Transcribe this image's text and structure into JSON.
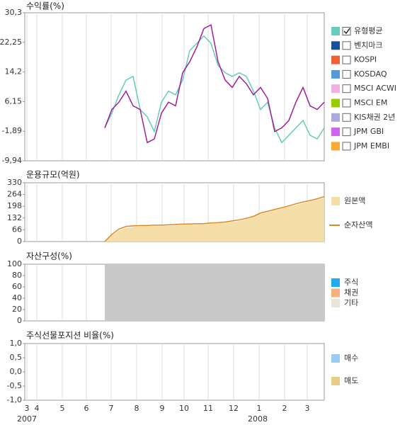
{
  "x_axis": {
    "ticks": [
      "3",
      "4",
      "5",
      "6",
      "7",
      "8",
      "9",
      "10",
      "11",
      "12",
      "1",
      "2",
      "3"
    ],
    "years": [
      "2007",
      "2008"
    ]
  },
  "chart_data": [
    {
      "type": "line",
      "title": "수익률(%)",
      "ylim": [
        -9.94,
        30.3
      ],
      "yticks": [
        {
          "value": 30.3,
          "label": "30,3"
        },
        {
          "value": 22.25,
          "label": "22,25"
        },
        {
          "value": 14.2,
          "label": "14,2"
        },
        {
          "value": 6.15,
          "label": "6,15"
        },
        {
          "value": -1.89,
          "label": "-1,89"
        },
        {
          "value": -9.94,
          "label": "-9,94"
        }
      ],
      "series": [
        {
          "color": "#a0209a",
          "values": [
            -1,
            4,
            6,
            9,
            5,
            4,
            -5,
            -4,
            3,
            6,
            5,
            14,
            17,
            21,
            26,
            27,
            17,
            12,
            10,
            13,
            11,
            8,
            10,
            7,
            -2,
            -1,
            1,
            6,
            10,
            5,
            4,
            6
          ]
        },
        {
          "name": "유형평균",
          "color": "#66ccbb",
          "checked": true,
          "values": [
            -1,
            3,
            8,
            12,
            13,
            4,
            2,
            -2,
            6,
            9,
            8,
            12,
            20,
            22,
            24,
            22,
            16,
            14,
            13,
            14,
            13,
            9,
            4,
            6,
            -1,
            -5,
            -3,
            -1,
            1,
            -3,
            -4,
            -1
          ]
        },
        {
          "name": "벤치마크",
          "color": "#1a4f9c",
          "checked": false,
          "values": []
        },
        {
          "name": "KOSPI",
          "color": "#f06030",
          "checked": false,
          "values": []
        },
        {
          "name": "KOSDAQ",
          "color": "#5599dd",
          "checked": false,
          "values": []
        },
        {
          "name": "MSCI ACWI",
          "color": "#f0b0e0",
          "checked": false,
          "values": []
        },
        {
          "name": "MSCI EM",
          "color": "#99cc00",
          "checked": false,
          "values": []
        },
        {
          "name": "KIS채권 2년",
          "color": "#aaaadd",
          "checked": false,
          "values": []
        },
        {
          "name": "JPM GBI",
          "color": "#cc66ee",
          "checked": false,
          "values": []
        },
        {
          "name": "JPM EMBI",
          "color": "#f8aa33",
          "checked": false,
          "values": []
        }
      ]
    },
    {
      "type": "area",
      "title": "운용규모(억원)",
      "ylim": [
        0,
        330
      ],
      "yticks": [
        0,
        66,
        132,
        198,
        264,
        330
      ],
      "series": [
        {
          "name": "원본액",
          "color": "#f5dfa8",
          "style": "area",
          "values": [
            0,
            35,
            62,
            78,
            82,
            84,
            85,
            86,
            87,
            88,
            90,
            92,
            94,
            96,
            98,
            100,
            102,
            106,
            110,
            116,
            124,
            140,
            155,
            165,
            175,
            185,
            195,
            205,
            215,
            225,
            235,
            245
          ]
        },
        {
          "name": "순자산액",
          "color": "#dd8822",
          "style": "line",
          "values": [
            0,
            40,
            70,
            85,
            88,
            90,
            90,
            92,
            92,
            94,
            96,
            98,
            99,
            100,
            101,
            104,
            106,
            110,
            116,
            122,
            130,
            142,
            160,
            170,
            180,
            190,
            200,
            212,
            222,
            230,
            240,
            252
          ]
        }
      ]
    },
    {
      "type": "area",
      "title": "자산구성(%)",
      "ylim": [
        0,
        100
      ],
      "yticks": [
        0,
        20,
        40,
        60,
        80,
        100
      ],
      "series": [
        {
          "name": "주식",
          "color": "#22aaee",
          "style": "area",
          "values": []
        },
        {
          "name": "채권",
          "color": "#f5b080",
          "style": "area",
          "values": []
        },
        {
          "name": "기타",
          "color": "#e8e4d8",
          "fill": "#c8c8c8",
          "style": "area",
          "values": [
            100,
            100,
            100,
            100,
            100,
            100,
            100,
            100,
            100,
            100,
            100,
            100,
            100,
            100,
            100,
            100,
            100,
            100,
            100,
            100,
            100,
            100,
            100,
            100,
            100,
            100,
            100,
            100,
            100,
            100,
            100,
            100
          ]
        }
      ]
    },
    {
      "type": "bar",
      "title": "주식선물포지션 비율(%)",
      "ylim": [
        -1,
        1
      ],
      "yticks": [
        {
          "value": 1,
          "label": "1,0"
        },
        {
          "value": 0.5,
          "label": "0,5"
        },
        {
          "value": 0,
          "label": "0,0"
        },
        {
          "value": -0.5,
          "label": "-0,5"
        },
        {
          "value": -1,
          "label": "-1,0"
        }
      ],
      "series": [
        {
          "name": "매수",
          "color": "#99ccee",
          "values": []
        },
        {
          "name": "매도",
          "color": "#e8cc88",
          "values": []
        }
      ]
    }
  ]
}
